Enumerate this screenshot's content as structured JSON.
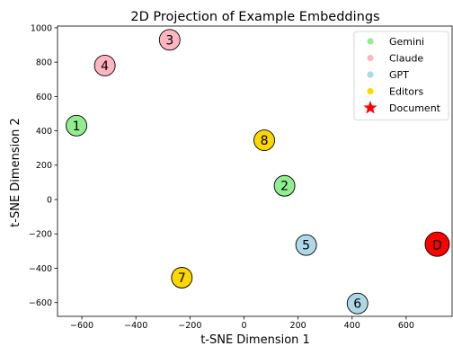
{
  "chart_data": {
    "type": "scatter",
    "title": "2D Projection of Example Embeddings",
    "xlabel": "t-SNE Dimension 1",
    "ylabel": "t-SNE Dimension 2",
    "xlim": [
      -690,
      770
    ],
    "ylim": [
      -680,
      1010
    ],
    "xticks": [
      -600,
      -400,
      -200,
      0,
      200,
      400,
      600
    ],
    "yticks": [
      -600,
      -400,
      -200,
      0,
      200,
      400,
      600,
      800,
      1000
    ],
    "xtick_labels": [
      "−600",
      "−400",
      "−200",
      "0",
      "200",
      "400",
      "600"
    ],
    "ytick_labels": [
      "−600",
      "−400",
      "−200",
      "0",
      "200",
      "400",
      "600",
      "800",
      "1000"
    ],
    "grid": false,
    "legend_position": "top-right",
    "series": [
      {
        "name": "Gemini",
        "color": "#90ee90",
        "points": [
          {
            "x": -620,
            "y": 430,
            "label": "1"
          },
          {
            "x": 150,
            "y": 80,
            "label": "2"
          }
        ]
      },
      {
        "name": "Claude",
        "color": "#ffb6c1",
        "points": [
          {
            "x": -275,
            "y": 930,
            "label": "3"
          },
          {
            "x": -515,
            "y": 780,
            "label": "4"
          }
        ]
      },
      {
        "name": "GPT",
        "color": "#add8e6",
        "points": [
          {
            "x": 230,
            "y": -265,
            "label": "5"
          },
          {
            "x": 420,
            "y": -605,
            "label": "6"
          }
        ]
      },
      {
        "name": "Editors",
        "color": "#ffd700",
        "points": [
          {
            "x": -230,
            "y": -455,
            "label": "7"
          },
          {
            "x": 75,
            "y": 345,
            "label": "8"
          }
        ]
      },
      {
        "name": "Document",
        "color": "#ff0000",
        "marker": "star",
        "points": [
          {
            "x": 715,
            "y": -260,
            "label": "D"
          }
        ]
      }
    ]
  }
}
